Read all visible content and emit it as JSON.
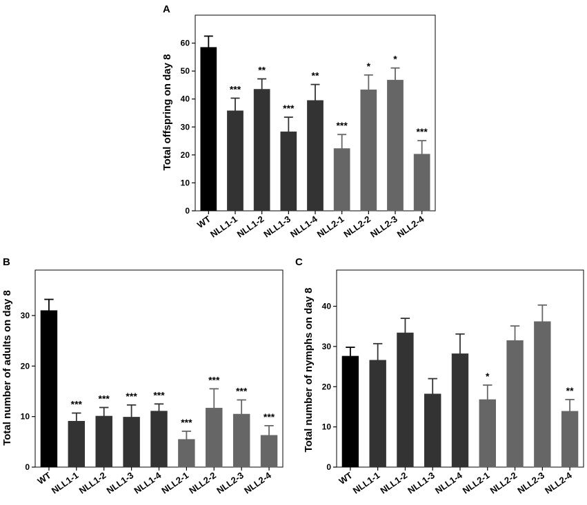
{
  "colors": {
    "wt": "#000000",
    "nll1": "#333333",
    "nll2": "#666666",
    "axis": "#000000"
  },
  "chart_data": [
    {
      "panel": "A",
      "type": "bar",
      "ylabel": "Total offspring on day 8",
      "ylim": [
        0,
        70
      ],
      "yticks": [
        0,
        10,
        20,
        30,
        40,
        50,
        60
      ],
      "categories": [
        "WT",
        "NLL1-1",
        "NLL1-2",
        "NLL1-3",
        "NLL1-4",
        "NLL2-1",
        "NLL2-2",
        "NLL2-3",
        "NLL2-4"
      ],
      "values": [
        58.5,
        35.8,
        43.5,
        28.3,
        39.5,
        22.3,
        43.3,
        46.8,
        20.3
      ],
      "errors": [
        4.0,
        4.5,
        3.7,
        5.2,
        5.7,
        5.0,
        5.3,
        4.3,
        4.8
      ],
      "significance": [
        "",
        "***",
        "**",
        "***",
        "**",
        "***",
        "*",
        "*",
        "***"
      ],
      "groups": [
        "wt",
        "nll1",
        "nll1",
        "nll1",
        "nll1",
        "nll2",
        "nll2",
        "nll2",
        "nll2"
      ]
    },
    {
      "panel": "B",
      "type": "bar",
      "ylabel": "Total number of adults on day 8",
      "ylim": [
        0,
        39
      ],
      "yticks": [
        0,
        10,
        20,
        30
      ],
      "categories": [
        "WT",
        "NLL1-1",
        "NLL1-2",
        "NLL1-3",
        "NLL1-4",
        "NLL2-1",
        "NLL2-2",
        "NLL2-3",
        "NLL2-4"
      ],
      "values": [
        31.0,
        9.1,
        10.1,
        9.9,
        11.1,
        5.5,
        11.7,
        10.5,
        6.3
      ],
      "errors": [
        2.2,
        1.6,
        1.7,
        2.4,
        1.4,
        1.6,
        3.8,
        2.8,
        1.9
      ],
      "significance": [
        "",
        "***",
        "***",
        "***",
        "***",
        "***",
        "***",
        "***",
        "***"
      ],
      "groups": [
        "wt",
        "nll1",
        "nll1",
        "nll1",
        "nll1",
        "nll2",
        "nll2",
        "nll2",
        "nll2"
      ]
    },
    {
      "panel": "C",
      "type": "bar",
      "ylabel": "Total number of nymphs on day 8",
      "ylim": [
        0,
        49
      ],
      "yticks": [
        0,
        10,
        20,
        30,
        40
      ],
      "categories": [
        "WT",
        "NLL1-1",
        "NLL1-2",
        "NLL1-3",
        "NLL1-4",
        "NLL2-1",
        "NLL2-2",
        "NLL2-3",
        "NLL2-4"
      ],
      "values": [
        27.6,
        26.6,
        33.4,
        18.2,
        28.2,
        16.8,
        31.5,
        36.2,
        13.9
      ],
      "errors": [
        2.2,
        4.1,
        3.6,
        3.8,
        4.9,
        3.6,
        3.6,
        4.1,
        2.9
      ],
      "significance": [
        "",
        "",
        "",
        "",
        "",
        "*",
        "",
        "",
        "**"
      ],
      "groups": [
        "wt",
        "nll1",
        "nll1",
        "nll1",
        "nll1",
        "nll2",
        "nll2",
        "nll2",
        "nll2"
      ]
    }
  ]
}
